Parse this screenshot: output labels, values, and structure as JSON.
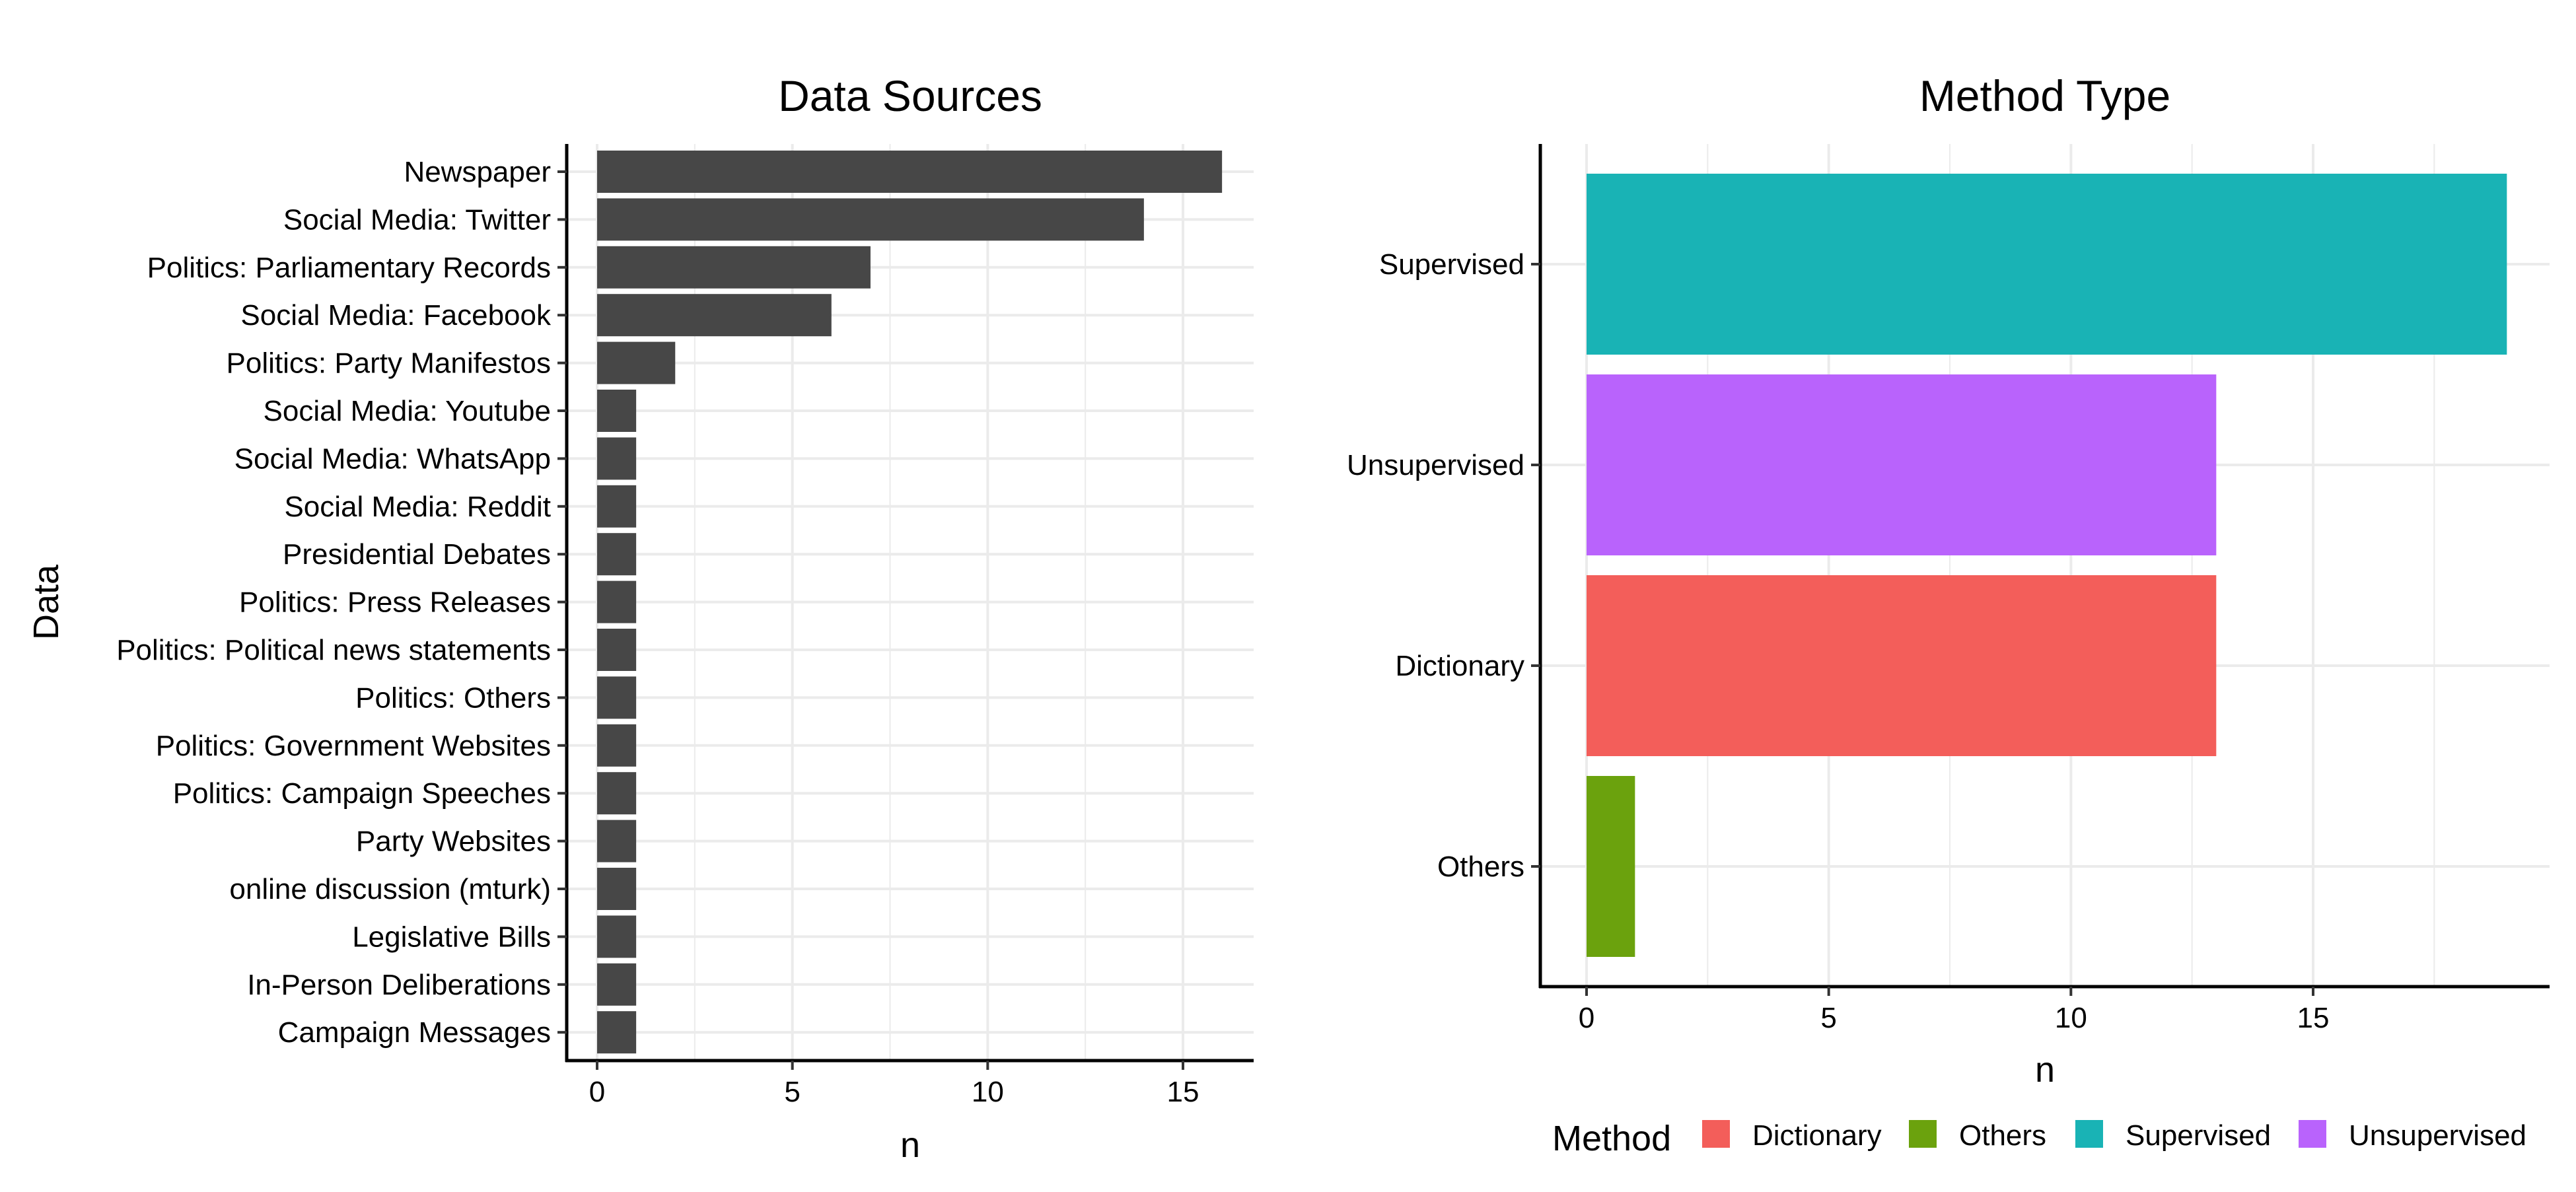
{
  "chart_data": [
    {
      "type": "bar",
      "orientation": "horizontal",
      "title": "Data Sources",
      "xlabel": "n",
      "ylabel": "Data",
      "xlim": [
        0,
        17
      ],
      "xticks": [
        0,
        5,
        10,
        15
      ],
      "grid": true,
      "bar_color": "#474747",
      "categories": [
        "Newspaper",
        "Social Media: Twitter",
        "Politics: Parliamentary Records",
        "Social Media: Facebook",
        "Politics: Party Manifestos",
        "Social Media: Youtube",
        "Social Media: WhatsApp",
        "Social Media: Reddit",
        "Presidential Debates",
        "Politics: Press Releases",
        "Politics: Political news statements",
        "Politics: Others",
        "Politics: Government Websites",
        "Politics: Campaign Speeches",
        "Party Websites",
        "online discussion (mturk)",
        "Legislative Bills",
        "In-Person Deliberations",
        "Campaign Messages"
      ],
      "values": [
        16,
        14,
        7,
        6,
        2,
        1,
        1,
        1,
        1,
        1,
        1,
        1,
        1,
        1,
        1,
        1,
        1,
        1,
        1
      ]
    },
    {
      "type": "bar",
      "orientation": "horizontal",
      "title": "Method Type",
      "xlabel": "n",
      "ylabel": "",
      "xlim": [
        0,
        20
      ],
      "xticks": [
        0,
        5,
        10,
        15
      ],
      "grid": true,
      "categories": [
        "Supervised",
        "Unsupervised",
        "Dictionary",
        "Others"
      ],
      "values": [
        19,
        13,
        13,
        1
      ],
      "colors": [
        "#19B3B5",
        "#B963FC",
        "#F35E5A",
        "#6BA20D"
      ],
      "legend": {
        "title": "Method",
        "position": "bottom",
        "entries": [
          {
            "label": "Dictionary",
            "color": "#F35E5A"
          },
          {
            "label": "Others",
            "color": "#6BA20D"
          },
          {
            "label": "Supervised",
            "color": "#19B3B5"
          },
          {
            "label": "Unsupervised",
            "color": "#B963FC"
          }
        ]
      }
    }
  ]
}
